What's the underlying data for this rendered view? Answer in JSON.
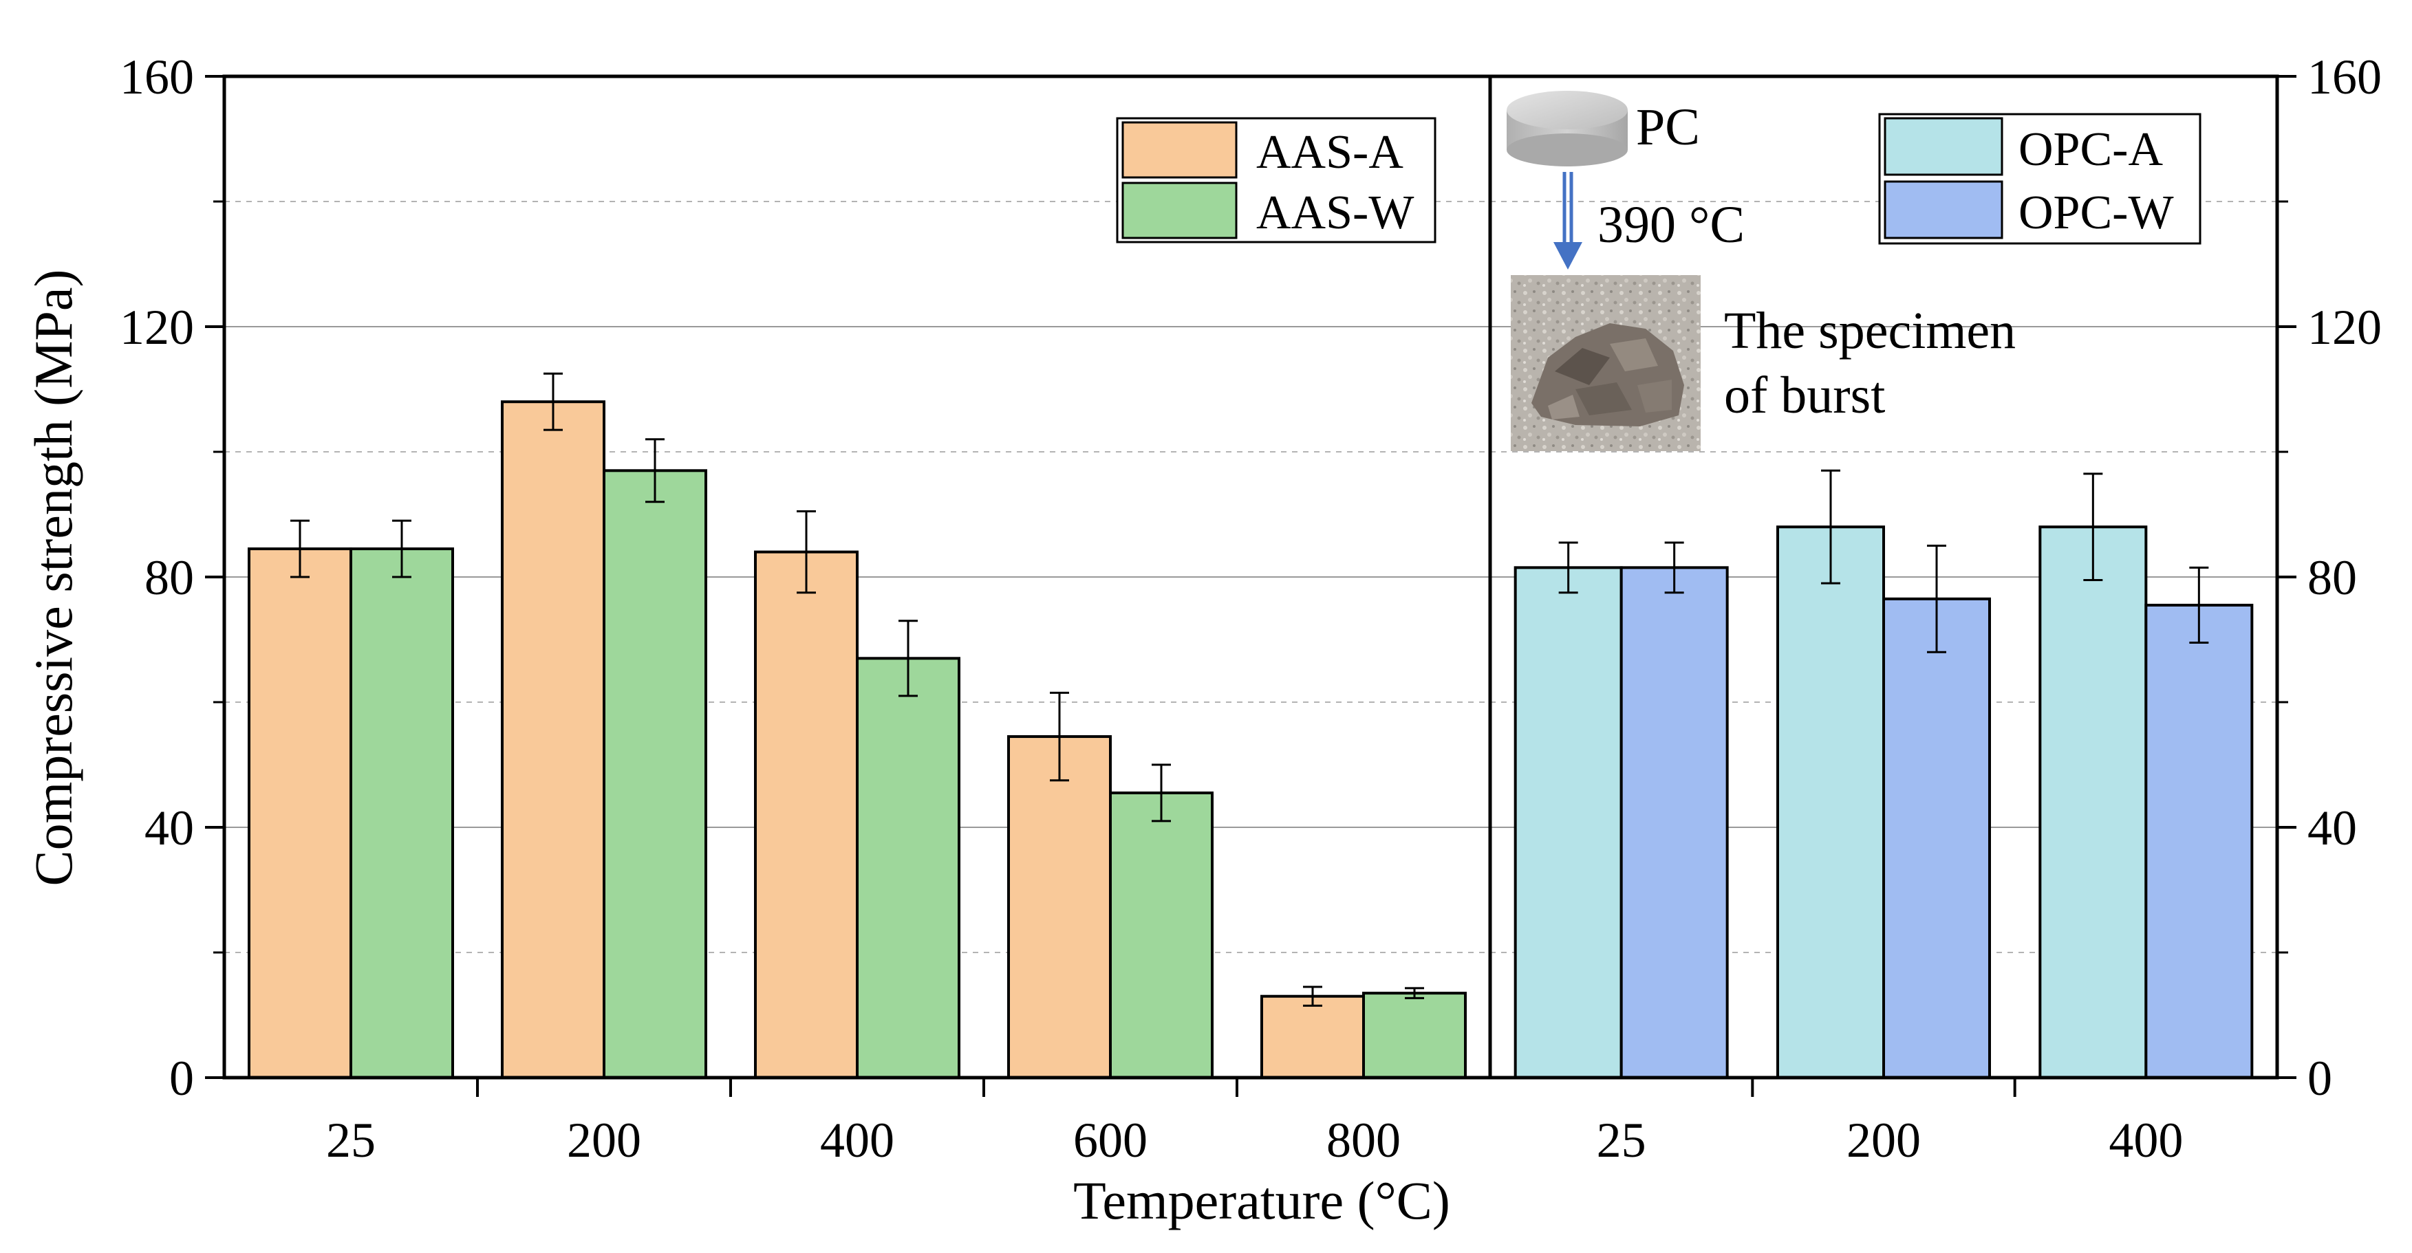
{
  "chart_data": {
    "type": "bar",
    "xlabel": "Temperature (°C)",
    "ylabel": "Compressive strength (MPa)",
    "ylim": [
      0,
      160
    ],
    "yticks": [
      0,
      40,
      80,
      120,
      160
    ],
    "y_gridlines_solid": [
      40,
      80,
      120
    ],
    "y_gridlines_dashed": [
      20,
      60,
      100,
      140
    ],
    "panels": [
      {
        "name": "AAS",
        "categories": [
          "25",
          "200",
          "400",
          "600",
          "800"
        ],
        "series": [
          {
            "name": "AAS-A",
            "color": "#F9C999",
            "values": [
              84.5,
              108,
              84,
              54.5,
              13
            ],
            "errors": [
              4.5,
              4.5,
              6.5,
              7,
              1.5
            ]
          },
          {
            "name": "AAS-W",
            "color": "#9ED79B",
            "values": [
              84.5,
              97,
              67,
              45.5,
              13.5
            ],
            "errors": [
              4.5,
              5,
              6,
              4.5,
              0.8
            ]
          }
        ],
        "legend_position": "top-right"
      },
      {
        "name": "OPC",
        "categories": [
          "25",
          "200",
          "400"
        ],
        "series": [
          {
            "name": "OPC-A",
            "color": "#B5E3E8",
            "values": [
              81.5,
              88,
              88
            ],
            "errors": [
              4,
              9,
              8.5
            ]
          },
          {
            "name": "OPC-W",
            "color": "#A0BCF2",
            "values": [
              81.5,
              76.5,
              75.5
            ],
            "errors": [
              4,
              8.5,
              6
            ]
          }
        ],
        "legend_position": "top-right"
      }
    ],
    "annotations": {
      "specimen_label": "PC",
      "temperature_label": "390 °C",
      "burst_line1": "The specimen",
      "burst_line2": "of burst"
    }
  }
}
